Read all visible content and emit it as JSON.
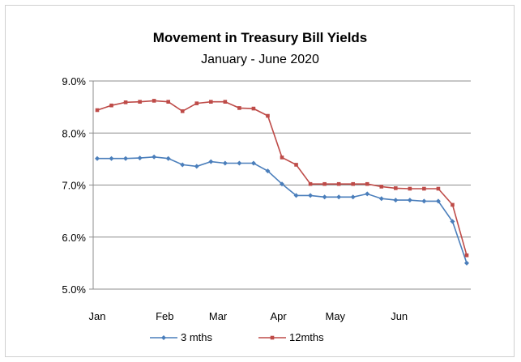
{
  "chart_data": {
    "type": "line",
    "title": "Movement in Treasury Bill Yields",
    "subtitle": "January - June 2020",
    "ylim": [
      5.0,
      9.0
    ],
    "yticks": [
      5.0,
      6.0,
      7.0,
      8.0,
      9.0
    ],
    "ytick_labels": [
      "5.0%",
      "6.0%",
      "7.0%",
      "8.0%",
      "9.0%"
    ],
    "x_month_labels": [
      {
        "label": "Jan",
        "at": 0
      },
      {
        "label": "Feb",
        "at": 4.75
      },
      {
        "label": "Mar",
        "at": 8.5
      },
      {
        "label": "Apr",
        "at": 12.75
      },
      {
        "label": "May",
        "at": 16.75
      },
      {
        "label": "Jun",
        "at": 21.25
      }
    ],
    "grid": true,
    "legend": "bottom",
    "series": [
      {
        "name": "3 mths",
        "color": "#4a7ebb",
        "values": [
          7.51,
          7.51,
          7.51,
          7.52,
          7.54,
          7.51,
          7.39,
          7.36,
          7.45,
          7.42,
          7.42,
          7.42,
          7.27,
          7.02,
          6.8,
          6.8,
          6.77,
          6.77,
          6.77,
          6.83,
          6.74,
          6.71,
          6.71,
          6.69,
          6.69,
          6.3,
          5.5
        ]
      },
      {
        "name": "12mths",
        "color": "#be4b48",
        "values": [
          8.44,
          8.53,
          8.59,
          8.6,
          8.62,
          8.6,
          8.42,
          8.57,
          8.6,
          8.6,
          8.48,
          8.47,
          8.33,
          7.53,
          7.39,
          7.02,
          7.02,
          7.02,
          7.02,
          7.02,
          6.97,
          6.94,
          6.93,
          6.93,
          6.93,
          6.62,
          5.65
        ]
      }
    ]
  }
}
